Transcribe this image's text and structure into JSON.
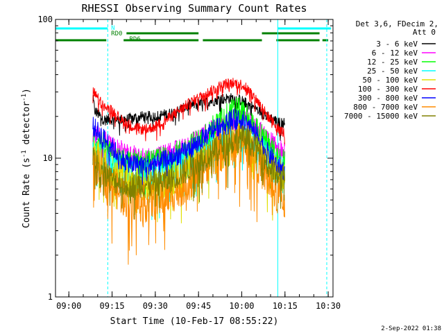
{
  "chart_data": {
    "type": "line",
    "title": "RHESSI Observing Summary Count Rates",
    "xlabel": "Start Time (10-Feb-17 08:55:22)",
    "ylabel": "Count Rate (s",
    "ylabel_sup": "-1",
    "ylabel_mid": " detector",
    "ylabel_end": ")",
    "y_scale": "log",
    "ylim": [
      1,
      100
    ],
    "y_ticks": [
      "1",
      "10",
      "100"
    ],
    "x_start": "08:55:22",
    "x_end": "10:31:40",
    "x_ticks": [
      "09:00",
      "09:15",
      "09:30",
      "09:45",
      "10:00",
      "10:15",
      "10:30"
    ],
    "legend_title": [
      "Det 3,6, FDecim 2,",
      "Att 0"
    ],
    "legend_placement": "right",
    "series": [
      {
        "name": "3 - 6 keV",
        "color": "#000000",
        "points": [
          [
            "09:08:20",
            27
          ],
          [
            "09:09:00",
            22
          ],
          [
            "09:12:00",
            19
          ],
          [
            "09:15:00",
            19
          ],
          [
            "09:20:00",
            19
          ],
          [
            "09:25:00",
            20
          ],
          [
            "09:30:00",
            20
          ],
          [
            "09:35:00",
            21
          ],
          [
            "09:38:00",
            22
          ],
          [
            "09:42:00",
            24
          ],
          [
            "09:46:00",
            25
          ],
          [
            "09:50:00",
            26
          ],
          [
            "09:54:00",
            27
          ],
          [
            "09:57:00",
            27
          ],
          [
            "10:00:00",
            26
          ],
          [
            "10:03:00",
            24
          ],
          [
            "10:06:00",
            22
          ],
          [
            "10:09:00",
            20
          ],
          [
            "10:11:00",
            19
          ],
          [
            "10:13:00",
            18
          ],
          [
            "10:15:00",
            18
          ]
        ]
      },
      {
        "name": "6 - 12 keV",
        "color": "#ff00ff",
        "points": [
          [
            "09:08:20",
            15
          ],
          [
            "09:12:00",
            14
          ],
          [
            "09:15:00",
            12
          ],
          [
            "09:20:00",
            11
          ],
          [
            "09:25:00",
            10
          ],
          [
            "09:30:00",
            10
          ],
          [
            "09:35:00",
            11
          ],
          [
            "09:40:00",
            12
          ],
          [
            "09:45:00",
            14
          ],
          [
            "09:50:00",
            16
          ],
          [
            "09:55:00",
            18
          ],
          [
            "10:00:00",
            19
          ],
          [
            "10:03:00",
            18
          ],
          [
            "10:06:00",
            16
          ],
          [
            "10:09:00",
            14
          ],
          [
            "10:12:00",
            12
          ],
          [
            "10:15:00",
            11
          ]
        ]
      },
      {
        "name": "12 - 25 keV",
        "color": "#00ff00",
        "points": [
          [
            "09:08:20",
            14
          ],
          [
            "09:12:00",
            12
          ],
          [
            "09:15:00",
            10
          ],
          [
            "09:20:00",
            9
          ],
          [
            "09:25:00",
            9
          ],
          [
            "09:30:00",
            9
          ],
          [
            "09:35:00",
            10
          ],
          [
            "09:40:00",
            11
          ],
          [
            "09:45:00",
            13
          ],
          [
            "09:50:00",
            16
          ],
          [
            "09:55:00",
            20
          ],
          [
            "09:58:00",
            22
          ],
          [
            "10:00:00",
            21
          ],
          [
            "10:03:00",
            18
          ],
          [
            "10:06:00",
            15
          ],
          [
            "10:09:00",
            12
          ],
          [
            "10:12:00",
            10
          ],
          [
            "10:15:00",
            9
          ]
        ]
      },
      {
        "name": "25 - 50 keV",
        "color": "#00ffff",
        "points": [
          [
            "09:08:20",
            12
          ],
          [
            "09:12:00",
            10
          ],
          [
            "09:15:00",
            9
          ],
          [
            "09:20:00",
            8
          ],
          [
            "09:25:00",
            8
          ],
          [
            "09:30:00",
            8
          ],
          [
            "09:35:00",
            8.5
          ],
          [
            "09:40:00",
            9
          ],
          [
            "09:45:00",
            10
          ],
          [
            "09:50:00",
            12
          ],
          [
            "09:55:00",
            14
          ],
          [
            "10:00:00",
            15
          ],
          [
            "10:03:00",
            14
          ],
          [
            "10:06:00",
            12
          ],
          [
            "10:09:00",
            10
          ],
          [
            "10:12:00",
            9
          ],
          [
            "10:15:00",
            8
          ]
        ]
      },
      {
        "name": "50 - 100 keV",
        "color": "#e0e000",
        "points": [
          [
            "09:08:20",
            11
          ],
          [
            "09:12:00",
            9
          ],
          [
            "09:15:00",
            8
          ],
          [
            "09:20:00",
            7
          ],
          [
            "09:25:00",
            6.5
          ],
          [
            "09:30:00",
            6.5
          ],
          [
            "09:35:00",
            7
          ],
          [
            "09:40:00",
            8
          ],
          [
            "09:45:00",
            9
          ],
          [
            "09:50:00",
            11
          ],
          [
            "09:55:00",
            13
          ],
          [
            "10:00:00",
            14
          ],
          [
            "10:03:00",
            13
          ],
          [
            "10:06:00",
            11
          ],
          [
            "10:09:00",
            9
          ],
          [
            "10:12:00",
            8
          ],
          [
            "10:15:00",
            7
          ]
        ]
      },
      {
        "name": "100 - 300 keV",
        "color": "#ff0000",
        "points": [
          [
            "09:08:20",
            31
          ],
          [
            "09:10:00",
            27
          ],
          [
            "09:12:00",
            24
          ],
          [
            "09:15:00",
            22
          ],
          [
            "09:18:00",
            19
          ],
          [
            "09:22:00",
            17
          ],
          [
            "09:26:00",
            16
          ],
          [
            "09:30:00",
            17
          ],
          [
            "09:34:00",
            19
          ],
          [
            "09:38:00",
            22
          ],
          [
            "09:42:00",
            25
          ],
          [
            "09:46:00",
            28
          ],
          [
            "09:50:00",
            31
          ],
          [
            "09:54:00",
            34
          ],
          [
            "09:57:00",
            35
          ],
          [
            "10:00:00",
            34
          ],
          [
            "10:03:00",
            30
          ],
          [
            "10:06:00",
            25
          ],
          [
            "10:09:00",
            20
          ],
          [
            "10:12:00",
            17
          ],
          [
            "10:15:00",
            15
          ]
        ]
      },
      {
        "name": "300 - 800 keV",
        "color": "#0000ff",
        "points": [
          [
            "09:08:20",
            17
          ],
          [
            "09:12:00",
            14
          ],
          [
            "09:15:00",
            12
          ],
          [
            "09:18:00",
            10
          ],
          [
            "09:22:00",
            9
          ],
          [
            "09:26:00",
            9
          ],
          [
            "09:30:00",
            9
          ],
          [
            "09:35:00",
            10
          ],
          [
            "09:40:00",
            11
          ],
          [
            "09:45:00",
            13
          ],
          [
            "09:50:00",
            16
          ],
          [
            "09:55:00",
            19
          ],
          [
            "10:00:00",
            19
          ],
          [
            "10:03:00",
            17
          ],
          [
            "10:06:00",
            14
          ],
          [
            "10:09:00",
            11
          ],
          [
            "10:12:00",
            9
          ],
          [
            "10:15:00",
            8
          ]
        ]
      },
      {
        "name": "800 - 7000 keV",
        "color": "#ff8c00",
        "points": [
          [
            "09:08:20",
            9
          ],
          [
            "09:12:00",
            7.5
          ],
          [
            "09:15:00",
            6.5
          ],
          [
            "09:18:00",
            5.5
          ],
          [
            "09:22:00",
            5
          ],
          [
            "09:26:00",
            4.8
          ],
          [
            "09:30:00",
            5
          ],
          [
            "09:35:00",
            5.5
          ],
          [
            "09:40:00",
            6.5
          ],
          [
            "09:45:00",
            8
          ],
          [
            "09:50:00",
            10
          ],
          [
            "09:55:00",
            12
          ],
          [
            "10:00:00",
            13
          ],
          [
            "10:03:00",
            12
          ],
          [
            "10:06:00",
            9
          ],
          [
            "10:09:00",
            7
          ],
          [
            "10:12:00",
            5.5
          ],
          [
            "10:15:00",
            5
          ]
        ]
      },
      {
        "name": "7000 - 15000 keV",
        "color": "#808000",
        "points": [
          [
            "09:08:20",
            10
          ],
          [
            "09:12:00",
            8
          ],
          [
            "09:15:00",
            7
          ],
          [
            "09:20:00",
            6.5
          ],
          [
            "09:25:00",
            6.5
          ],
          [
            "09:30:00",
            6.5
          ],
          [
            "09:35:00",
            7
          ],
          [
            "09:40:00",
            8
          ],
          [
            "09:45:00",
            9.5
          ],
          [
            "09:50:00",
            11
          ],
          [
            "09:55:00",
            13
          ],
          [
            "10:00:00",
            14
          ],
          [
            "10:03:00",
            13
          ],
          [
            "10:06:00",
            11
          ],
          [
            "10:09:00",
            9
          ],
          [
            "10:12:00",
            7.5
          ],
          [
            "10:15:00",
            7
          ]
        ]
      }
    ],
    "flag_labels": [
      "N",
      "RD0",
      "RD6"
    ],
    "flag_colors": {
      "N": "#00ffff",
      "RD0": "#008000",
      "RD6": "#008000"
    },
    "flag_segments": {
      "N": [
        [
          "08:55:22",
          "09:13:30"
        ],
        [
          "10:12:30",
          "10:31:00"
        ]
      ],
      "RD0": [
        [
          "09:20:00",
          "09:45:00"
        ],
        [
          "10:07:00",
          "10:27:00"
        ]
      ],
      "RD6": [
        [
          "08:55:22",
          "09:13:00"
        ],
        [
          "09:19:00",
          "09:45:00"
        ],
        [
          "09:46:30",
          "10:07:00"
        ],
        [
          "10:12:00",
          "10:27:00"
        ],
        [
          "10:28:00",
          "10:30:00"
        ]
      ]
    },
    "cyan_solid_lines": [
      "08:55:22",
      "10:12:30"
    ],
    "cyan_dashed_lines": [
      "09:13:30",
      "10:29:30"
    ]
  },
  "footer": {
    "date": "2-Sep-2022 01:38"
  }
}
